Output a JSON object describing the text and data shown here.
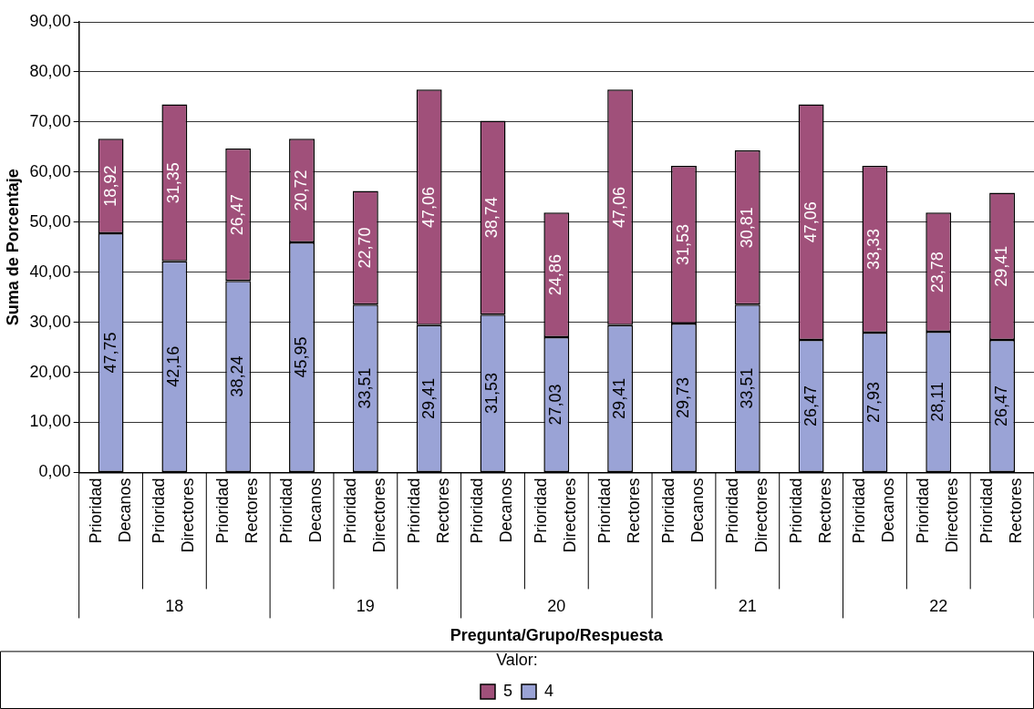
{
  "chart_data": {
    "type": "bar",
    "stacked": true,
    "xlabel": "Pregunta/Grupo/Respuesta",
    "ylabel": "Suma de Porcentaje",
    "legend_title": "Valor:",
    "legend": "bottom",
    "grid": "y",
    "categories": [
      "Prioridad Decanos",
      "Prioridad Directores",
      "Prioridad Rectores",
      "Prioridad Decanos",
      "Prioridad Directores",
      "Prioridad Rectores",
      "Prioridad Decanos",
      "Prioridad Directores",
      "Prioridad Rectores",
      "Prioridad Decanos",
      "Prioridad Directores",
      "Prioridad Rectores",
      "Prioridad Decanos",
      "Prioridad Directores",
      "Prioridad Rectores"
    ],
    "annotations": [
      "18",
      "19",
      "20",
      "21",
      "22"
    ],
    "ylim": [
      0,
      90
    ],
    "yticks": [
      {
        "value": 0,
        "label": "0,00"
      },
      {
        "value": 10,
        "label": "10,00"
      },
      {
        "value": 20,
        "label": "20,00"
      },
      {
        "value": 30,
        "label": "30,00"
      },
      {
        "value": 40,
        "label": "40,00"
      },
      {
        "value": 50,
        "label": "50,00"
      },
      {
        "value": 60,
        "label": "60,00"
      },
      {
        "value": 70,
        "label": "70,00"
      },
      {
        "value": 80,
        "label": "80,00"
      },
      {
        "value": 90,
        "label": "90,00"
      }
    ],
    "series": [
      {
        "name": "4",
        "color": "#9aa3d6",
        "values": [
          47.75,
          42.16,
          38.24,
          45.95,
          33.51,
          29.41,
          31.53,
          27.03,
          29.41,
          29.73,
          33.51,
          26.47,
          27.93,
          28.11,
          26.47
        ],
        "value_labels": [
          "47,75",
          "42,16",
          "38,24",
          "45,95",
          "33,51",
          "29,41",
          "31,53",
          "27,03",
          "29,41",
          "29,73",
          "33,51",
          "26,47",
          "27,93",
          "28,11",
          "26,47"
        ]
      },
      {
        "name": "5",
        "color": "#a0507a",
        "values": [
          18.92,
          31.35,
          26.47,
          20.72,
          22.7,
          47.06,
          38.74,
          24.86,
          47.06,
          31.53,
          30.81,
          47.06,
          33.33,
          23.78,
          29.41
        ],
        "value_labels": [
          "18,92",
          "31,35",
          "26,47",
          "20,72",
          "22,70",
          "47,06",
          "38,74",
          "24,86",
          "47,06",
          "31,53",
          "30,81",
          "47,06",
          "33,33",
          "23,78",
          "29,41"
        ]
      }
    ]
  }
}
